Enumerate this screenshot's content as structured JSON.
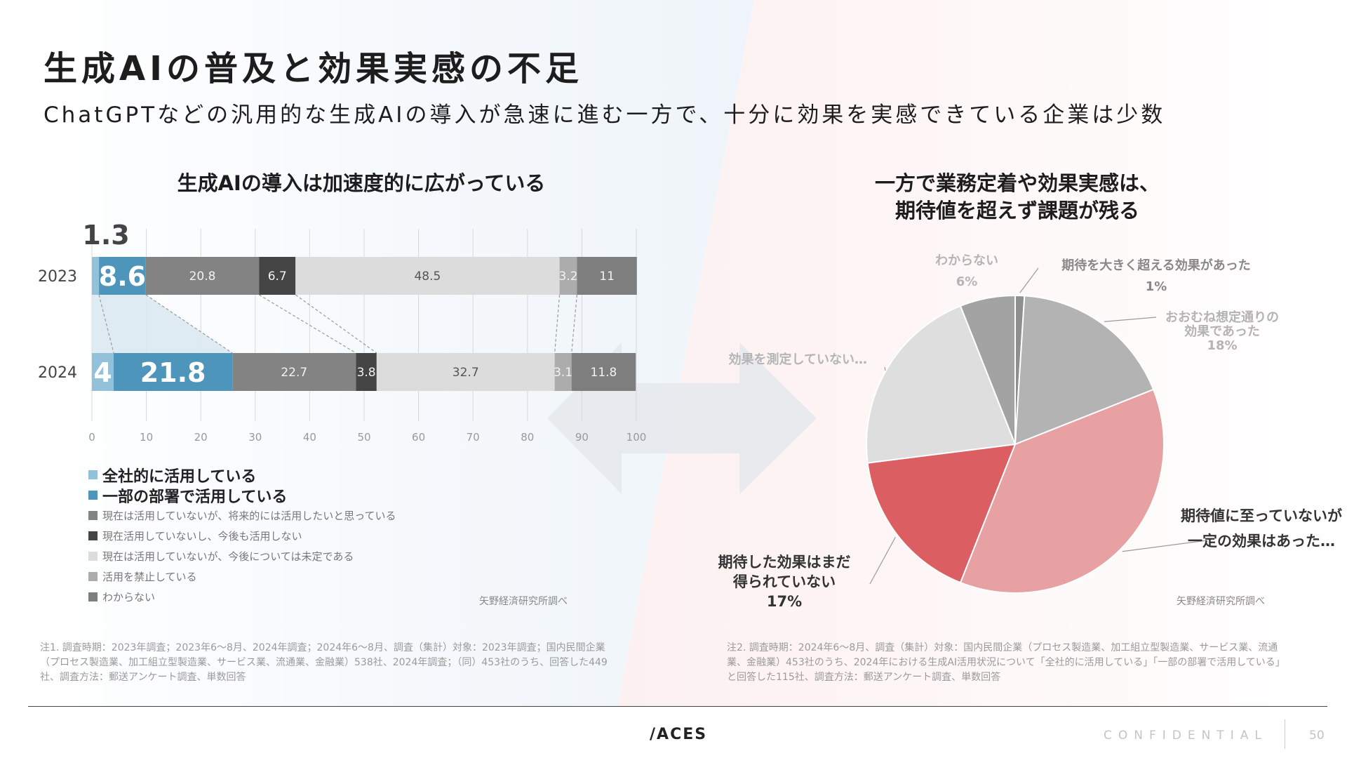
{
  "slide": {
    "title": "生成AIの普及と効果実感の不足",
    "subtitle": "ChatGPTなどの汎用的な生成AIの導入が急速に進む一方で、十分に効果を実感できている企業は少数"
  },
  "left": {
    "title": "生成AIの導入は加速度的に広がっている",
    "source": "矢野経済研究所調べ",
    "note": "注1. 調査時期：2023年調査；2023年6〜8月、2024年調査；2024年6〜8月、調査（集計）対象：2023年調査；国内民間企業（プロセス製造業、加工組立型製造業、サービス業、流通業、金融業）538社、2024年調査；（同）453社のうち、回答した449社、調査方法：郵送アンケート調査、単数回答"
  },
  "right": {
    "title_line1": "一方で業務定着や効果実感は、",
    "title_line2": "期待値を超えず課題が残る",
    "source": "矢野経済研究所調べ",
    "note": "注2. 調査時期：2024年6〜8月、調査（集計）対象：国内民間企業（プロセス製造業、加工組立型製造業、サービス業、流通業、金融業）453社のうち、2024年における生成AI活用状況について「全社的に活用している」「一部の部署で活用している」と回答した115社、調査方法：郵送アンケート調査、単数回答"
  },
  "colors": {
    "bg_left": "#eef4f9",
    "bg_right": "#fdf0f0",
    "arrow": "#e6e9ec",
    "connector": "#9a9a9a",
    "grid": "#d8d8d8"
  },
  "chart_data": [
    {
      "type": "bar",
      "orientation": "horizontal-stacked-100",
      "title": "生成AIの導入は加速度的に広がっている",
      "categories": [
        "2023",
        "2024"
      ],
      "xlim": [
        0,
        100
      ],
      "xticks": [
        0,
        10,
        20,
        30,
        40,
        50,
        60,
        70,
        80,
        90,
        100
      ],
      "series": [
        {
          "name": "全社的に活用している",
          "values": [
            1.3,
            4
          ],
          "labels": [
            "1.3",
            "4"
          ],
          "color": "#92c1d9",
          "emphasis": true,
          "label_style": "big"
        },
        {
          "name": "一部の部署で活用している",
          "values": [
            8.6,
            21.8
          ],
          "labels": [
            "8.6",
            "21.8"
          ],
          "color": "#4e95bb",
          "emphasis": true,
          "label_style": "big"
        },
        {
          "name": "現在は活用していないが、将来的には活用したいと思っている",
          "values": [
            20.8,
            22.7
          ],
          "labels": [
            "20.8",
            "22.7"
          ],
          "color": "#838383",
          "emphasis": false,
          "label_style": "light"
        },
        {
          "name": "現在活用していないし、今後も活用しない",
          "values": [
            6.7,
            3.8
          ],
          "labels": [
            "6.7",
            "3.8"
          ],
          "color": "#454545",
          "emphasis": false,
          "label_style": "light"
        },
        {
          "name": "現在は活用していないが、今後については未定である",
          "values": [
            48.5,
            32.7
          ],
          "labels": [
            "48.5",
            "32.7"
          ],
          "color": "#dcdcdc",
          "emphasis": false,
          "label_style": "dark"
        },
        {
          "name": "活用を禁止している",
          "values": [
            3.2,
            3.1
          ],
          "labels": [
            "3.2",
            "3.1"
          ],
          "color": "#acacac",
          "emphasis": false,
          "label_style": "light"
        },
        {
          "name": "わからない",
          "values": [
            11,
            11.8
          ],
          "labels": [
            "11",
            "11.8"
          ],
          "color": "#7e7e7e",
          "emphasis": false,
          "label_style": "light"
        }
      ]
    },
    {
      "type": "pie",
      "title": "一方で業務定着や効果実感は、期待値を超えず課題が残る",
      "start": "top",
      "direction": "clockwise",
      "slices": [
        {
          "label_lines": [
            "期待を大きく超える効果があった",
            "1%"
          ],
          "value": 1,
          "color": "#8f8f8f",
          "label_color": "#888888",
          "label_bold": true,
          "label_align": "center"
        },
        {
          "label_lines": [
            "おおむね想定通りの",
            "効果であった",
            "18%"
          ],
          "value": 18,
          "color": "#b3b3b3",
          "label_color": "#b3b3b3",
          "label_bold": true,
          "label_align": "center"
        },
        {
          "label_lines": [
            "期待値に至っていないが",
            "一定の効果はあった…"
          ],
          "value": 37,
          "color": "#e8a1a3",
          "label_color": "#333333",
          "label_bold": true,
          "label_align": "center"
        },
        {
          "label_lines": [
            "期待した効果はまだ",
            "得られていない",
            "17%"
          ],
          "value": 17,
          "color": "#db5f62",
          "label_color": "#333333",
          "label_bold": true,
          "label_align": "center"
        },
        {
          "label_lines": [
            "効果を測定していない…"
          ],
          "value": 21,
          "color": "#dedede",
          "label_color": "#b5b5b5",
          "label_bold": true,
          "label_align": "right"
        },
        {
          "label_lines": [
            "わからない",
            "6%"
          ],
          "value": 6,
          "color": "#a3a3a3",
          "label_color": "#b5b5b5",
          "label_bold": true,
          "label_align": "center"
        }
      ]
    }
  ],
  "footer": {
    "logo": "ACES",
    "logo_mark": "/",
    "confidential": "CONFIDENTIAL",
    "page_number": "50"
  }
}
